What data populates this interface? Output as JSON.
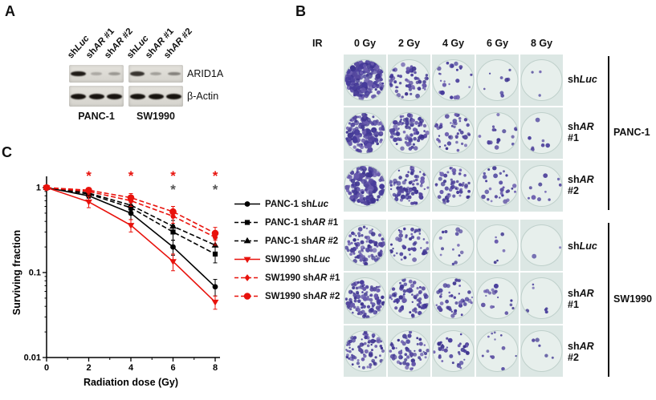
{
  "panel_a": {
    "label": "A",
    "lane_labels": [
      {
        "pre": "sh",
        "it": "Luc",
        "post": ""
      },
      {
        "pre": "sh",
        "it": "AR",
        "post": " #1"
      },
      {
        "pre": "sh",
        "it": "AR",
        "post": " #2"
      },
      {
        "pre": "sh",
        "it": "Luc",
        "post": ""
      },
      {
        "pre": "sh",
        "it": "AR",
        "post": " #1"
      },
      {
        "pre": "sh",
        "it": "AR",
        "post": " #2"
      }
    ],
    "proteins": [
      "ARID1A",
      "β-Actin"
    ],
    "cell_lines": [
      "PANC-1",
      "SW1990"
    ],
    "band_intensities": {
      "arid1a": [
        [
          0.95,
          0.12,
          0.22
        ],
        [
          0.8,
          0.18,
          0.35
        ]
      ],
      "actin": [
        [
          1.0,
          1.0,
          1.0
        ],
        [
          1.0,
          1.0,
          1.0
        ]
      ]
    }
  },
  "panel_b": {
    "label": "B",
    "ir_label": "IR",
    "doses": [
      "0 Gy",
      "2 Gy",
      "4 Gy",
      "6 Gy",
      "8 Gy"
    ],
    "colony_color_palette": [
      "#3f3590",
      "#55489e",
      "#6a5cae",
      "#473c9b"
    ],
    "well_bg": "#dce7e4",
    "dish_fill": "#e7efec",
    "dish_stroke": "#bfd0cb",
    "groups": [
      {
        "cell_line": "PANC-1",
        "rows": [
          {
            "label": {
              "pre": "sh",
              "it": "Luc",
              "post": ""
            },
            "colonies": [
              160,
              55,
              22,
              8,
              3
            ]
          },
          {
            "label": {
              "pre": "sh",
              "it": "AR",
              "post": "#1"
            },
            "colonies": [
              115,
              88,
              45,
              18,
              7
            ]
          },
          {
            "label": {
              "pre": "sh",
              "it": "AR",
              "post": "#2"
            },
            "colonies": [
              130,
              78,
              55,
              28,
              10
            ]
          }
        ]
      },
      {
        "cell_line": "SW1990",
        "rows": [
          {
            "label": {
              "pre": "sh",
              "it": "Luc",
              "post": ""
            },
            "colonies": [
              85,
              45,
              14,
              6,
              2
            ]
          },
          {
            "label": {
              "pre": "sh",
              "it": "AR",
              "post": "#1"
            },
            "colonies": [
              95,
              72,
              40,
              16,
              6
            ]
          },
          {
            "label": {
              "pre": "sh",
              "it": "AR",
              "post": "#2"
            },
            "colonies": [
              75,
              55,
              35,
              12,
              5
            ]
          }
        ]
      }
    ]
  },
  "panel_c": {
    "label": "C"
  },
  "chart_data": {
    "type": "line",
    "x": [
      0,
      2,
      4,
      6,
      8
    ],
    "xlabel": "Radiation dose (Gy)",
    "ylabel": "Surviving fraction",
    "yscale": "log",
    "ylim": [
      0.01,
      1
    ],
    "xticks": [
      0,
      2,
      4,
      6,
      8
    ],
    "yticks": [
      1,
      0.1,
      0.01
    ],
    "series": [
      {
        "name": "PANC-1 shLuc",
        "parts": {
          "pre": "PANC-1 sh",
          "it": "Luc",
          "post": ""
        },
        "color": "#000000",
        "line": "solid",
        "marker": "circle",
        "msize": 3.4,
        "values": [
          1.0,
          0.8,
          0.5,
          0.2,
          0.068
        ],
        "err": [
          0.04,
          0.1,
          0.08,
          0.04,
          0.015
        ]
      },
      {
        "name": "PANC-1 shAR #1",
        "parts": {
          "pre": "PANC-1 sh",
          "it": "AR",
          "post": " #1"
        },
        "color": "#000000",
        "line": "dashed",
        "marker": "square",
        "msize": 3.1,
        "values": [
          1.0,
          0.84,
          0.58,
          0.3,
          0.165
        ],
        "err": [
          0.04,
          0.09,
          0.09,
          0.06,
          0.035
        ]
      },
      {
        "name": "PANC-1 shAR #2",
        "parts": {
          "pre": "PANC-1 sh",
          "it": "AR",
          "post": " #2"
        },
        "color": "#000000",
        "line": "dashed",
        "marker": "triangle-up",
        "msize": 3.6,
        "values": [
          1.0,
          0.86,
          0.62,
          0.35,
          0.21
        ],
        "err": [
          0.04,
          0.08,
          0.08,
          0.06,
          0.04
        ]
      },
      {
        "name": "SW1990 shLuc",
        "parts": {
          "pre": "SW1990 sh",
          "it": "Luc",
          "post": ""
        },
        "color": "#e8120c",
        "line": "solid",
        "marker": "triangle-down",
        "msize": 3.6,
        "values": [
          1.0,
          0.68,
          0.36,
          0.135,
          0.045
        ],
        "err": [
          0.04,
          0.1,
          0.06,
          0.03,
          0.008
        ]
      },
      {
        "name": "SW1990 shAR #1",
        "parts": {
          "pre": "SW1990 sh",
          "it": "AR",
          "post": " #1"
        },
        "color": "#e8120c",
        "line": "dashed",
        "marker": "diamond",
        "msize": 3.4,
        "values": [
          1.0,
          0.9,
          0.7,
          0.46,
          0.26
        ],
        "err": [
          0.04,
          0.08,
          0.1,
          0.08,
          0.05
        ]
      },
      {
        "name": "SW1990 shAR #2",
        "parts": {
          "pre": "SW1990 sh",
          "it": "AR",
          "post": " #2"
        },
        "color": "#e8120c",
        "line": "dashed",
        "marker": "circle",
        "msize": 4.3,
        "values": [
          1.0,
          0.93,
          0.76,
          0.52,
          0.29
        ],
        "err": [
          0.04,
          0.07,
          0.09,
          0.08,
          0.05
        ]
      }
    ],
    "annotations": [
      {
        "text": "*",
        "x": 2,
        "color": "#e8120c",
        "row": 0
      },
      {
        "text": "*",
        "x": 4,
        "color": "#e8120c",
        "row": 0
      },
      {
        "text": "*",
        "x": 6,
        "color": "#e8120c",
        "row": 0
      },
      {
        "text": "*",
        "x": 8,
        "color": "#e8120c",
        "row": 0
      },
      {
        "text": "*",
        "x": 6,
        "color": "#555555",
        "row": 1
      },
      {
        "text": "*",
        "x": 8,
        "color": "#555555",
        "row": 1
      }
    ],
    "legend_position": "right"
  },
  "colors": {
    "red": "#e8120c",
    "black": "#000000"
  }
}
